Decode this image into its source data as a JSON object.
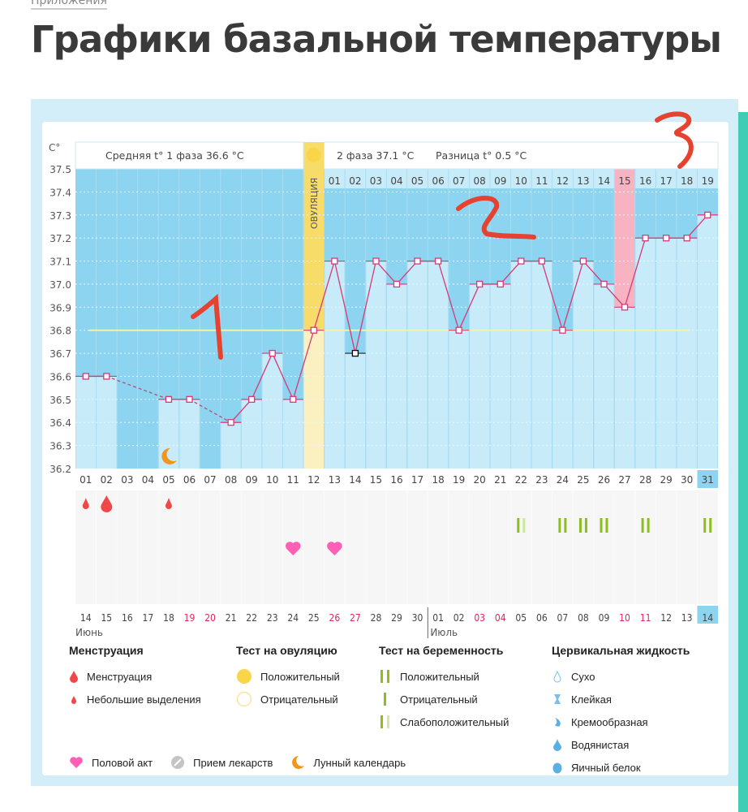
{
  "breadcrumb": "Приложения",
  "page_title": "Графики базальной температуры",
  "chart_data": {
    "type": "line",
    "ylabel": "C°",
    "ylim": [
      36.2,
      37.5
    ],
    "yticks": [
      "37.5",
      "37.4",
      "37.3",
      "37.2",
      "37.1",
      "37.0",
      "36.9",
      "36.8",
      "36.7",
      "36.6",
      "36.5",
      "36.4",
      "36.3",
      "36.2"
    ],
    "header": {
      "phase1": "Средняя t° 1 фаза 36.6 °C",
      "phase2": "2 фаза 37.1 °C",
      "diff": "Разница t° 0.5 °C"
    },
    "ovulation_label": "ОВУЛЯЦИЯ",
    "ovulation_day": 12,
    "highlight_day": 27,
    "coverline": 36.8,
    "cycle_days": [
      "01",
      "02",
      "03",
      "04",
      "05",
      "06",
      "07",
      "08",
      "09",
      "10",
      "11",
      "12",
      "13",
      "14",
      "15",
      "16",
      "17",
      "18",
      "19",
      "20",
      "21",
      "22",
      "23",
      "24",
      "25",
      "26",
      "27",
      "28",
      "29",
      "30",
      "31"
    ],
    "temperatures": [
      36.6,
      36.6,
      null,
      null,
      36.5,
      36.5,
      null,
      36.4,
      36.5,
      36.7,
      36.5,
      36.8,
      37.1,
      36.7,
      37.1,
      37.0,
      37.1,
      37.1,
      36.8,
      37.0,
      37.0,
      37.1,
      37.1,
      36.8,
      37.1,
      37.0,
      36.9,
      37.2,
      37.2,
      37.2,
      37.3
    ],
    "phase2_days": [
      "01",
      "02",
      "03",
      "04",
      "05",
      "06",
      "07",
      "08",
      "09",
      "10",
      "11",
      "12",
      "13",
      "14",
      "15",
      "16",
      "17",
      "18",
      "19"
    ],
    "dates": [
      "14",
      "15",
      "16",
      "17",
      "18",
      "19",
      "20",
      "21",
      "22",
      "23",
      "24",
      "25",
      "26",
      "27",
      "28",
      "29",
      "30",
      "01",
      "02",
      "03",
      "04",
      "05",
      "06",
      "07",
      "08",
      "09",
      "10",
      "11",
      "12",
      "13",
      "14"
    ],
    "weekend_dates_idx": [
      5,
      6,
      12,
      13,
      19,
      20,
      26,
      27
    ],
    "months": [
      "Июнь",
      "Июль"
    ],
    "menstruation": {
      "heavy": [
        2
      ],
      "light": [
        1,
        5
      ]
    },
    "pregnancy_test": {
      "positive": [
        24,
        25,
        26,
        28,
        31
      ],
      "weak_positive": [
        22
      ]
    },
    "intercourse": [
      11,
      13
    ],
    "moon": [
      5
    ]
  },
  "legend": {
    "menstruation": {
      "title": "Менструация",
      "items": [
        "Менструация",
        "Небольшие выделения"
      ]
    },
    "ovulation_test": {
      "title": "Тест на овуляцию",
      "items": [
        "Положительный",
        "Отрицательный"
      ]
    },
    "pregnancy_test": {
      "title": "Тест на беременность",
      "items": [
        "Положительный",
        "Отрицательный",
        "Слабоположительный"
      ]
    },
    "cervical": {
      "title": "Цервикальная жидкость",
      "items": [
        "Сухо",
        "Клейкая",
        "Кремообразная",
        "Водянистая",
        "Яичный белок"
      ]
    },
    "other": [
      "Половой акт",
      "Прием лекарств",
      "Лунный календарь"
    ]
  },
  "colors": {
    "dark": "#8dd4f0",
    "light": "#c8ebf9",
    "line": "#d63a78",
    "ovulation": "#f7dc6a",
    "pink": "#f8b3c3",
    "weekend": "#e0245e",
    "green": "#8cbf1e",
    "heart": "#ff5fb4",
    "drop": "#f04848",
    "moon": "#f0961e"
  }
}
